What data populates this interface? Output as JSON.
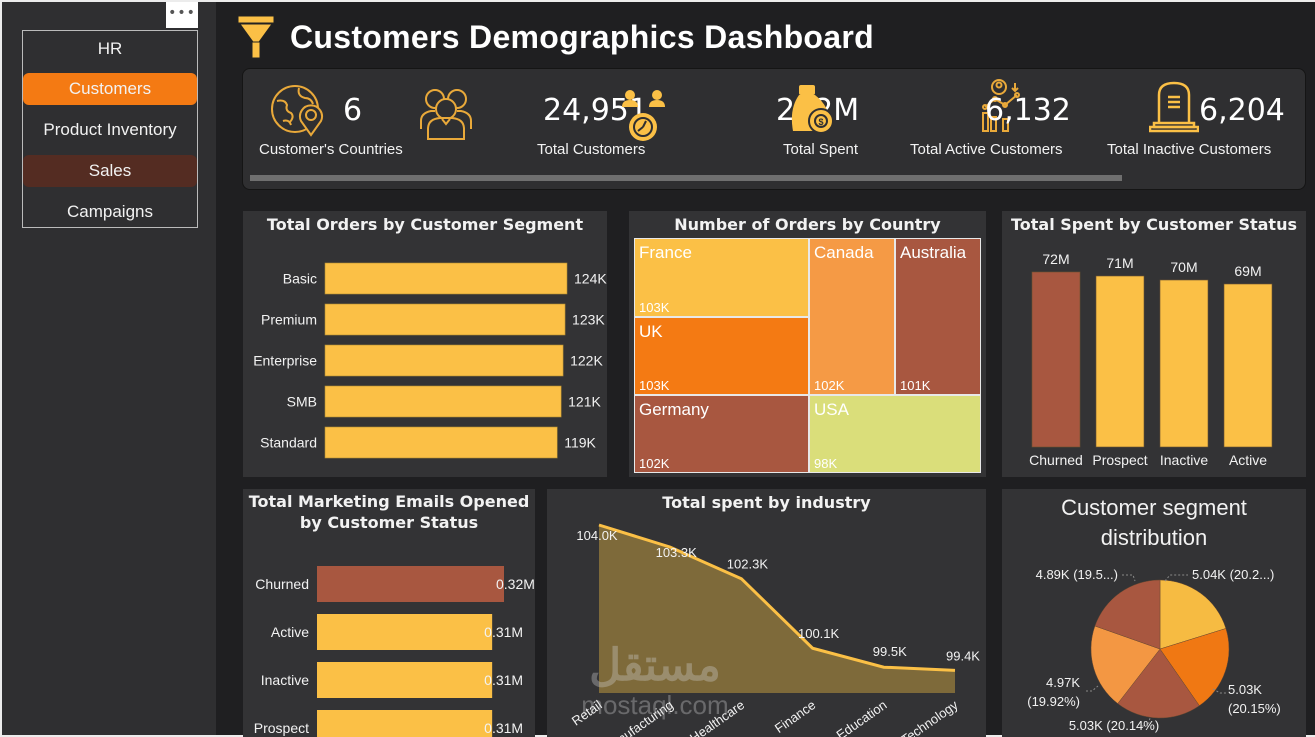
{
  "sidebar": {
    "more_label": "•••",
    "items": [
      {
        "label": "HR",
        "state": "normal"
      },
      {
        "label": "Customers",
        "state": "active"
      },
      {
        "label": "Product Inventory",
        "state": "normal"
      },
      {
        "label": "Sales",
        "state": "highlight"
      },
      {
        "label": "Campaigns",
        "state": "normal"
      }
    ]
  },
  "header": {
    "title": "Customers Demographics Dashboard",
    "icon": "funnel-icon"
  },
  "kpis": [
    {
      "value": "6",
      "label": "Customer's Countries",
      "icon": "globe-location-icon"
    },
    {
      "value": "24,951",
      "label": "Total Customers",
      "icon": "people-group-icon"
    },
    {
      "value": "282M",
      "label": "Total Spent",
      "icon": "money-bag-icon"
    },
    {
      "value": "6,132",
      "label": "Total Active Customers",
      "icon": "active-users-chart-icon"
    },
    {
      "value": "6,204",
      "label": "Total Inactive Customers",
      "icon": "tombstone-icon"
    }
  ],
  "colors": {
    "yellow": "#fbc046",
    "orange": "#f47a13",
    "light_orange": "#f59a45",
    "brown": "#a85740",
    "lime": "#dade7a",
    "area_fill": "#7e6a3a"
  },
  "watermark": {
    "line1": "مستقل",
    "line2": "mostaql.com"
  },
  "chart_data": [
    {
      "id": "orders_by_segment",
      "type": "bar",
      "orientation": "horizontal",
      "title": "Total Orders by Customer Segment",
      "categories": [
        "Basic",
        "Premium",
        "Enterprise",
        "SMB",
        "Standard"
      ],
      "values": [
        124000,
        123000,
        122000,
        121000,
        119000
      ],
      "labels": [
        "124K",
        "123K",
        "122K",
        "121K",
        "119K"
      ],
      "xlim": [
        0,
        124000
      ]
    },
    {
      "id": "orders_by_country",
      "type": "treemap",
      "title": "Number of Orders by Country",
      "items": [
        {
          "name": "France",
          "value": 103000,
          "label": "103K",
          "color": "#fbc046"
        },
        {
          "name": "UK",
          "value": 103000,
          "label": "103K",
          "color": "#f47a13"
        },
        {
          "name": "Germany",
          "value": 102000,
          "label": "102K",
          "color": "#a85740"
        },
        {
          "name": "Canada",
          "value": 102000,
          "label": "102K",
          "color": "#f59a45"
        },
        {
          "name": "Australia",
          "value": 101000,
          "label": "101K",
          "color": "#a85740"
        },
        {
          "name": "USA",
          "value": 98000,
          "label": "98K",
          "color": "#dade7a"
        }
      ]
    },
    {
      "id": "spent_by_status",
      "type": "bar",
      "orientation": "vertical",
      "title": "Total Spent by Customer Status",
      "categories": [
        "Churned",
        "Prospect",
        "Inactive",
        "Active"
      ],
      "values": [
        72,
        71,
        70,
        69
      ],
      "labels": [
        "72M",
        "71M",
        "70M",
        "69M"
      ],
      "colors": [
        "#a85740",
        "#fbc046",
        "#fbc046",
        "#fbc046"
      ],
      "ylim": [
        0,
        72
      ]
    },
    {
      "id": "emails_by_status",
      "type": "bar",
      "orientation": "horizontal",
      "title_lines": [
        "Total Marketing Emails Opened",
        "by Customer Status"
      ],
      "categories": [
        "Churned",
        "Active",
        "Inactive",
        "Prospect"
      ],
      "values": [
        0.32,
        0.31,
        0.31,
        0.31
      ],
      "labels": [
        "0.32M",
        "0.31M",
        "0.31M",
        "0.31M"
      ],
      "colors": [
        "#a85740",
        "#fbc046",
        "#fbc046",
        "#fbc046"
      ],
      "xlim": [
        0,
        0.32
      ]
    },
    {
      "id": "spent_by_industry",
      "type": "area",
      "title": "Total spent by industry",
      "categories": [
        "Retail",
        "Manufacturing",
        "Healthcare",
        "Finance",
        "Education",
        "Technology"
      ],
      "values": [
        104.0,
        103.3,
        102.3,
        100.1,
        99.5,
        99.4
      ],
      "labels": [
        "104.0K",
        "103.3K",
        "102.3K",
        "100.1K",
        "99.5K",
        "99.4K"
      ],
      "ylim": [
        99.0,
        104.0
      ],
      "unit": "K"
    },
    {
      "id": "segment_distribution",
      "type": "pie",
      "title_lines": [
        "Customer segment",
        "distribution"
      ],
      "slices": [
        {
          "value": 5.04,
          "percent": 20.2,
          "label": "5.04K (20.2...)",
          "color": "#f6bb42"
        },
        {
          "value": 5.03,
          "percent": 20.15,
          "label_lines": [
            "5.03K",
            "(20.15%)"
          ],
          "color": "#f07813"
        },
        {
          "value": 5.03,
          "percent": 20.14,
          "label": "5.03K (20.14%)",
          "color": "#a85740"
        },
        {
          "value": 4.97,
          "percent": 19.92,
          "label_lines": [
            "4.97K",
            "(19.92%)"
          ],
          "color": "#f39743"
        },
        {
          "value": 4.89,
          "percent": 19.5,
          "label": "4.89K (19.5...)",
          "color": "#a85740"
        }
      ]
    }
  ]
}
